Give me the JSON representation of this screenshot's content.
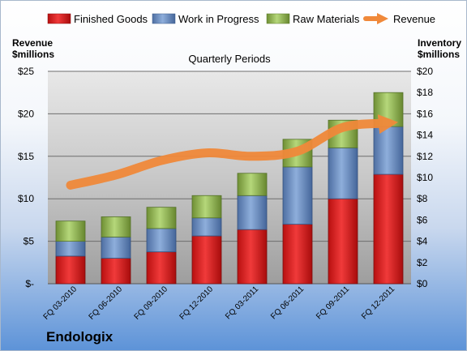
{
  "chart_data": {
    "type": "bar",
    "stacked": true,
    "subtitle": "Quarterly Periods",
    "company": "Endologix",
    "y_left_label": [
      "Revenue",
      "$millions"
    ],
    "y_right_label": [
      "Inventory",
      "$millions"
    ],
    "y_left_ticks": [
      "$-",
      "$5",
      "$10",
      "$15",
      "$20",
      "$25"
    ],
    "y_right_ticks": [
      "$0",
      "$2",
      "$4",
      "$6",
      "$8",
      "$10",
      "$12",
      "$14",
      "$16",
      "$18",
      "$20"
    ],
    "ylim_left": [
      0,
      25
    ],
    "ylim_right": [
      0,
      20
    ],
    "categories": [
      "FQ 03-2010",
      "FQ 06-2010",
      "FQ 09-2010",
      "FQ 12-2010",
      "FQ 03-2011",
      "FQ 06-2011",
      "FQ 09-2011",
      "FQ 12-2011"
    ],
    "series": [
      {
        "name": "Finished Goods",
        "axis": "right",
        "color": "#e02020",
        "values": [
          2.6,
          2.4,
          3.0,
          4.5,
          5.1,
          5.6,
          8.0,
          10.3
        ]
      },
      {
        "name": "Work in Progress",
        "axis": "right",
        "color": "#6a8fc6",
        "values": [
          1.4,
          2.0,
          2.2,
          1.7,
          3.2,
          5.4,
          4.8,
          4.5
        ]
      },
      {
        "name": "Raw Materials",
        "axis": "right",
        "color": "#9bc25a",
        "values": [
          1.9,
          1.9,
          2.0,
          2.1,
          2.1,
          2.6,
          2.6,
          3.2
        ]
      }
    ],
    "line_series": {
      "name": "Revenue",
      "axis": "left",
      "color": "#f0893a",
      "values": [
        11.6,
        12.8,
        14.5,
        15.4,
        15.0,
        15.6,
        18.4,
        18.9
      ]
    },
    "legend_position": "top"
  }
}
